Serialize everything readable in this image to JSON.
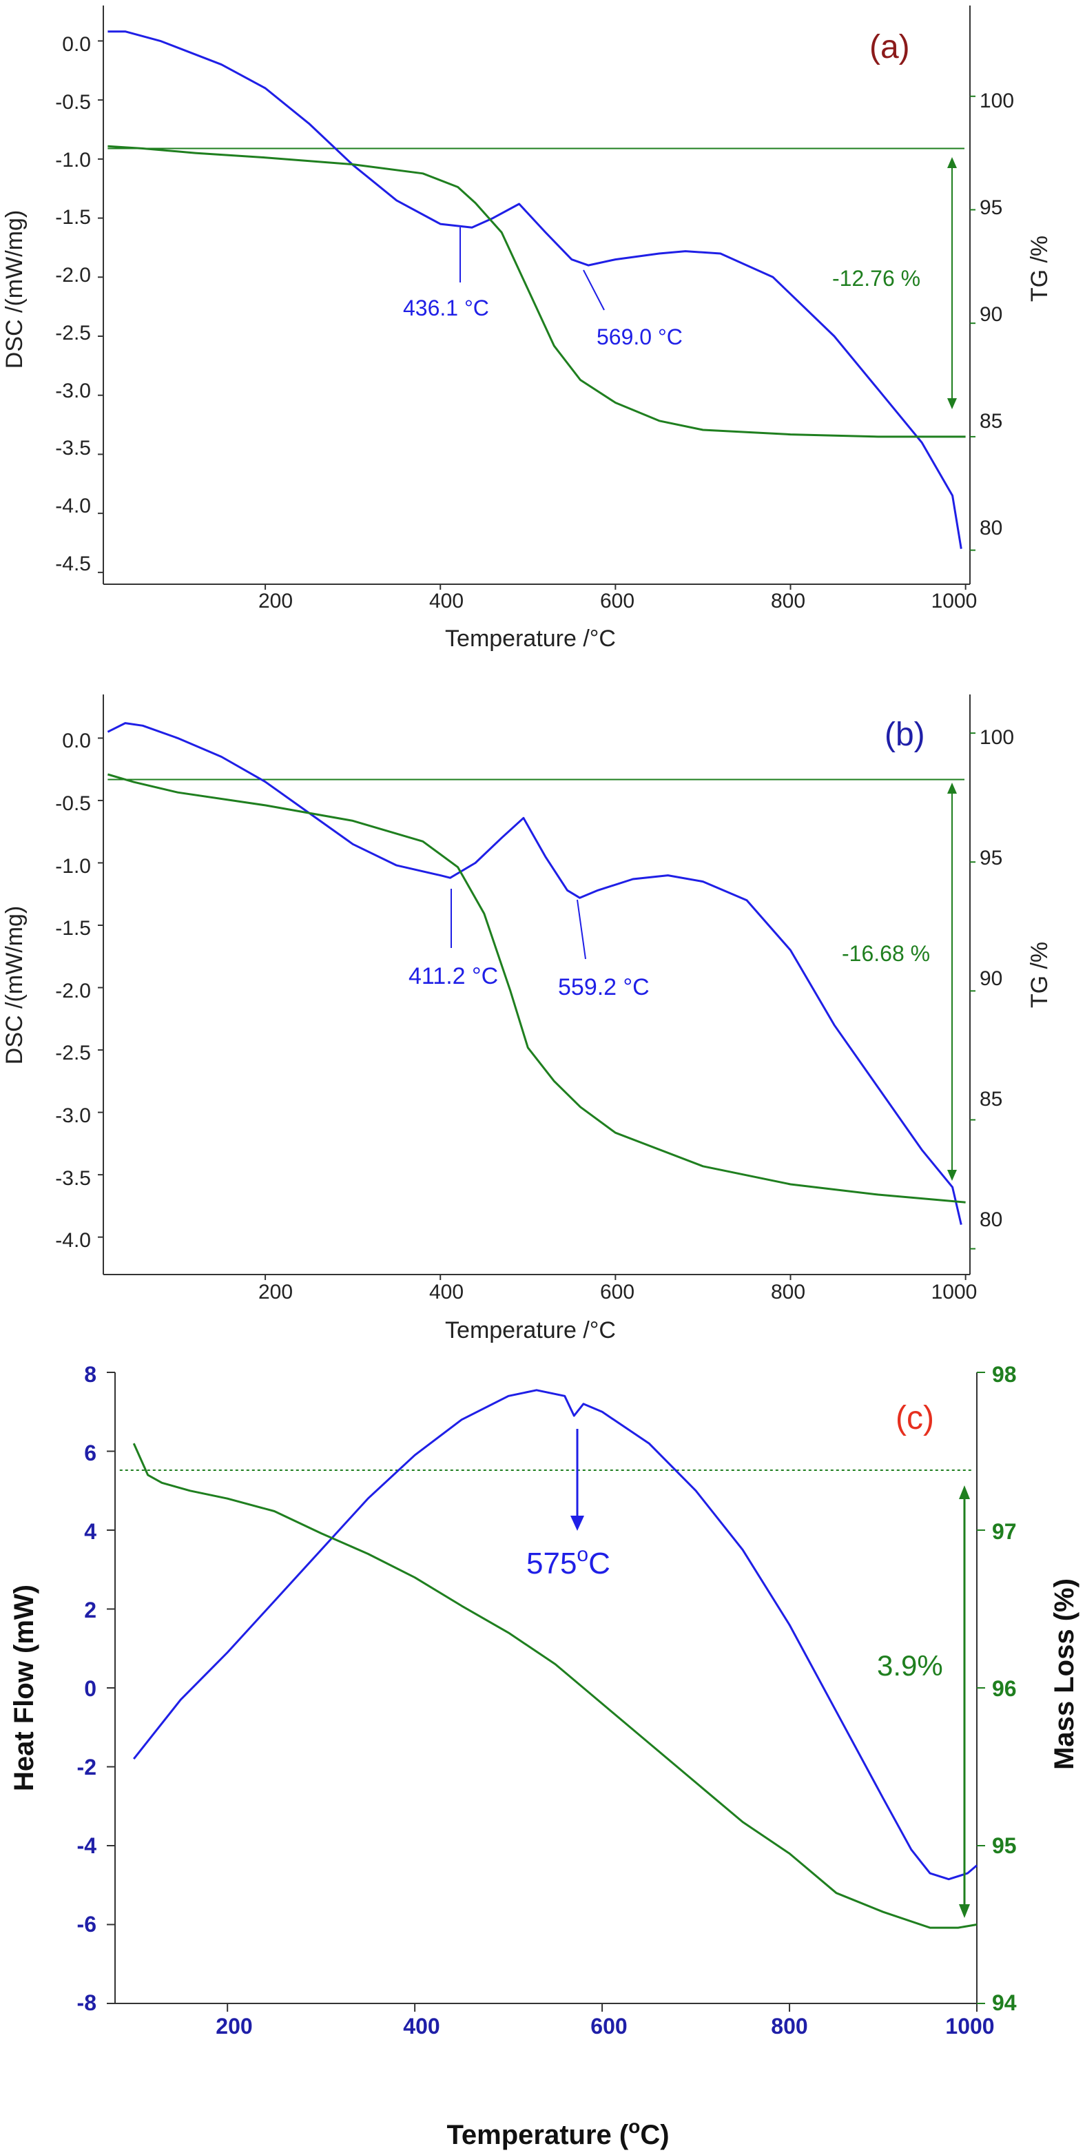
{
  "colors": {
    "dsc": "#1f1fe6",
    "tg": "#1f7f1f",
    "axis": "#333333",
    "label_a": "#8b1a1a",
    "label_c": "#e6301f"
  },
  "chart_data": [
    {
      "panel": "(a)",
      "type": "line",
      "xlabel": "Temperature /°C",
      "ylabel_left": "DSC /(mW/mg)",
      "ylabel_right": "TG /%",
      "xlim": [
        15,
        1005
      ],
      "ylim_left": [
        -4.6,
        0.3
      ],
      "ylim_right": [
        78.5,
        104
      ],
      "xticks": [
        "200",
        "400",
        "600",
        "800",
        "1000"
      ],
      "yticks_left": [
        "0.0",
        "-0.5",
        "-1.0",
        "-1.5",
        "-2.0",
        "-2.5",
        "-3.0",
        "-3.5",
        "-4.0",
        "-4.5"
      ],
      "yticks_right": [
        "100",
        "95",
        "90",
        "85",
        "80"
      ],
      "baseline_tg": 97.7,
      "series": [
        {
          "axis": "left",
          "x": [
            20,
            40,
            80,
            150,
            200,
            250,
            300,
            350,
            400,
            436.1,
            460,
            490,
            520,
            550,
            569,
            600,
            650,
            680,
            720,
            780,
            850,
            900,
            950,
            985,
            995
          ],
          "y": [
            0.08,
            0.08,
            0.0,
            -0.2,
            -0.4,
            -0.7,
            -1.05,
            -1.35,
            -1.55,
            -1.58,
            -1.5,
            -1.38,
            -1.62,
            -1.85,
            -1.9,
            -1.85,
            -1.8,
            -1.78,
            -1.8,
            -2.0,
            -2.5,
            -2.95,
            -3.4,
            -3.85,
            -4.3
          ]
        },
        {
          "axis": "right",
          "x": [
            20,
            60,
            120,
            200,
            300,
            380,
            420,
            440,
            470,
            500,
            530,
            560,
            600,
            650,
            700,
            800,
            900,
            1000
          ],
          "y": [
            97.8,
            97.7,
            97.5,
            97.3,
            97.0,
            96.6,
            96.0,
            95.3,
            94.0,
            91.5,
            89.0,
            87.5,
            86.5,
            85.7,
            85.3,
            85.1,
            85.0,
            85.0
          ]
        }
      ],
      "annotations": [
        {
          "text": "436.1 °C",
          "x": 436.1,
          "y": -1.58
        },
        {
          "text": "569.0 °C",
          "x": 569.0,
          "y": -1.9
        },
        {
          "text": "-12.76 %"
        }
      ]
    },
    {
      "panel": "(b)",
      "type": "line",
      "xlabel": "Temperature /°C",
      "ylabel_left": "DSC /(mW/mg)",
      "ylabel_right": "TG /%",
      "xlim": [
        15,
        1005
      ],
      "ylim_left": [
        -4.3,
        0.35
      ],
      "ylim_right": [
        79,
        101.5
      ],
      "xticks": [
        "200",
        "400",
        "600",
        "800",
        "1000"
      ],
      "yticks_left": [
        "0.0",
        "-0.5",
        "-1.0",
        "-1.5",
        "-2.0",
        "-2.5",
        "-3.0",
        "-3.5",
        "-4.0"
      ],
      "yticks_right": [
        "100",
        "95",
        "90",
        "85",
        "80"
      ],
      "baseline_tg": 98.2,
      "series": [
        {
          "axis": "left",
          "x": [
            20,
            40,
            60,
            100,
            150,
            200,
            250,
            300,
            350,
            400,
            411.2,
            440,
            470,
            495,
            520,
            545,
            559.2,
            580,
            620,
            660,
            700,
            750,
            800,
            850,
            900,
            950,
            985,
            995
          ],
          "y": [
            0.05,
            0.12,
            0.1,
            0.0,
            -0.15,
            -0.35,
            -0.6,
            -0.85,
            -1.02,
            -1.1,
            -1.12,
            -1.0,
            -0.8,
            -0.64,
            -0.95,
            -1.22,
            -1.28,
            -1.22,
            -1.13,
            -1.1,
            -1.15,
            -1.3,
            -1.7,
            -2.3,
            -2.8,
            -3.3,
            -3.6,
            -3.9
          ]
        },
        {
          "axis": "right",
          "x": [
            20,
            50,
            100,
            200,
            300,
            380,
            420,
            450,
            480,
            500,
            530,
            560,
            600,
            700,
            800,
            900,
            1000
          ],
          "y": [
            98.4,
            98.1,
            97.7,
            97.2,
            96.6,
            95.8,
            94.8,
            93.0,
            90.0,
            87.8,
            86.5,
            85.5,
            84.5,
            83.2,
            82.5,
            82.1,
            81.8
          ]
        }
      ],
      "annotations": [
        {
          "text": "411.2 °C",
          "x": 411.2,
          "y": -1.12
        },
        {
          "text": "559.2 °C",
          "x": 559.2,
          "y": -1.28
        },
        {
          "text": "-16.68 %"
        }
      ]
    },
    {
      "panel": "(c)",
      "type": "line",
      "xlabel_prefix": "Temperature (",
      "xlabel_sup": "o",
      "xlabel_suffix": "C)",
      "ylabel_left": "Heat Flow (mW)",
      "ylabel_right": "Mass Loss (%)",
      "xlim": [
        80,
        1000
      ],
      "ylim_left": [
        -8,
        8
      ],
      "ylim_right": [
        94,
        98
      ],
      "xticks": [
        "200",
        "400",
        "600",
        "800",
        "1000"
      ],
      "yticks_left": [
        "8",
        "6",
        "4",
        "2",
        "0",
        "-2",
        "-4",
        "-6",
        "-8"
      ],
      "yticks_right": [
        "98",
        "97",
        "96",
        "95",
        "94"
      ],
      "baseline_mass": 97.38,
      "series": [
        {
          "axis": "left",
          "x": [
            100,
            120,
            150,
            200,
            250,
            300,
            350,
            400,
            450,
            500,
            530,
            560,
            570,
            580,
            600,
            650,
            700,
            750,
            800,
            850,
            900,
            930,
            950,
            970,
            990,
            1000
          ],
          "y": [
            -1.8,
            -1.2,
            -0.3,
            0.9,
            2.2,
            3.5,
            4.8,
            5.9,
            6.8,
            7.4,
            7.55,
            7.4,
            6.9,
            7.2,
            7.0,
            6.2,
            5.0,
            3.5,
            1.6,
            -0.6,
            -2.8,
            -4.1,
            -4.7,
            -4.85,
            -4.7,
            -4.5
          ]
        },
        {
          "axis": "right",
          "x": [
            100,
            115,
            130,
            160,
            200,
            250,
            300,
            350,
            400,
            450,
            500,
            550,
            600,
            650,
            700,
            750,
            800,
            850,
            900,
            950,
            980,
            1000
          ],
          "y": [
            97.55,
            97.35,
            97.3,
            97.25,
            97.2,
            97.12,
            96.98,
            96.85,
            96.7,
            96.52,
            96.35,
            96.15,
            95.9,
            95.65,
            95.4,
            95.15,
            94.95,
            94.7,
            94.58,
            94.48,
            94.48,
            94.5
          ]
        }
      ],
      "annotations": [
        {
          "text_prefix": "575",
          "text_sup": "o",
          "text_suffix": "C",
          "x": 575
        },
        {
          "text": "3.9%"
        }
      ]
    }
  ]
}
